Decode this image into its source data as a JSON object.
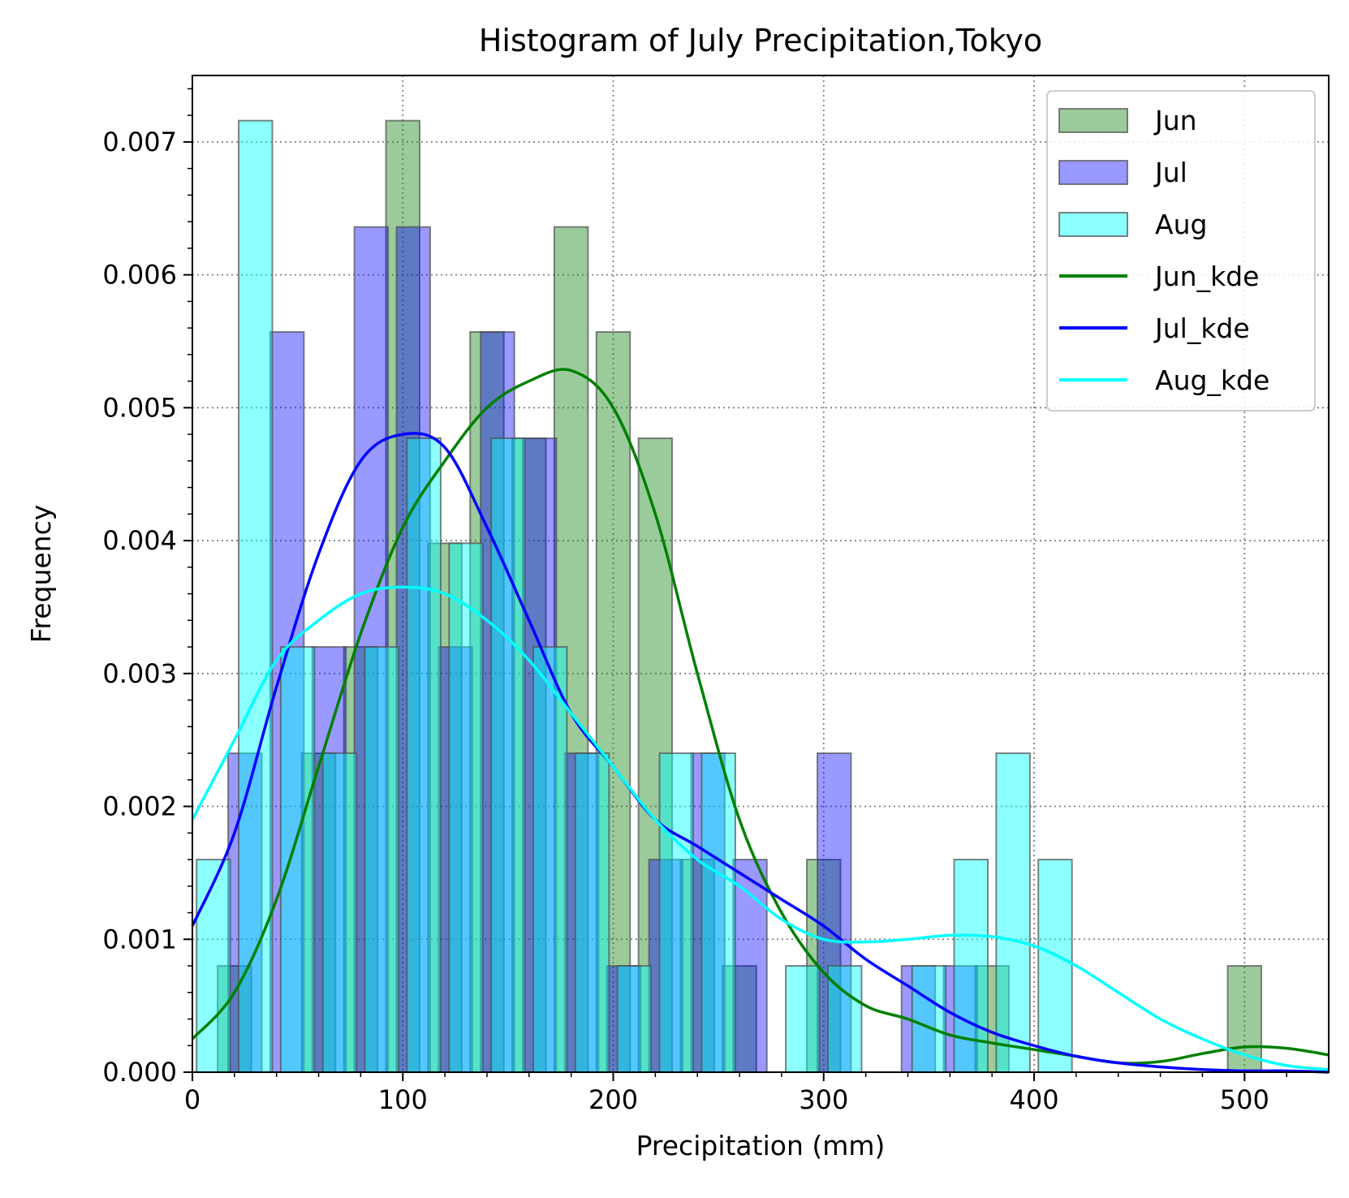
{
  "chart_data": {
    "type": "bar",
    "title": "Histogram of July Precipitation,Tokyo",
    "xlabel": "Precipitation (mm)",
    "ylabel": "Frequency",
    "xlim": [
      0,
      540
    ],
    "ylim": [
      0,
      0.0075
    ],
    "xticks": [
      "0",
      "100",
      "200",
      "300",
      "400",
      "500"
    ],
    "yticks": [
      "0.000",
      "0.001",
      "0.002",
      "0.003",
      "0.004",
      "0.005",
      "0.006",
      "0.007"
    ],
    "grid": true,
    "legend_position": "top-right",
    "bin_width": 20,
    "series": [
      {
        "name": "Jun",
        "kind": "hist",
        "color": "#228B22",
        "bins": [
          [
            20,
            0.0008
          ],
          [
            60,
            0.0024
          ],
          [
            80,
            0.0032
          ],
          [
            100,
            0.00716
          ],
          [
            120,
            0.00398
          ],
          [
            140,
            0.00557
          ],
          [
            160,
            0.00477
          ],
          [
            180,
            0.00636
          ],
          [
            200,
            0.00557
          ],
          [
            220,
            0.00477
          ],
          [
            240,
            0.0016
          ],
          [
            260,
            0.0008
          ],
          [
            300,
            0.0016
          ],
          [
            380,
            0.0008
          ],
          [
            500,
            0.0008
          ]
        ]
      },
      {
        "name": "Jul",
        "kind": "hist",
        "color": "#0000ff",
        "bins": [
          [
            25,
            0.0024
          ],
          [
            45,
            0.00557
          ],
          [
            65,
            0.0032
          ],
          [
            85,
            0.00636
          ],
          [
            105,
            0.00636
          ],
          [
            125,
            0.0032
          ],
          [
            145,
            0.00557
          ],
          [
            165,
            0.00477
          ],
          [
            185,
            0.0024
          ],
          [
            205,
            0.0008
          ],
          [
            225,
            0.0016
          ],
          [
            245,
            0.0024
          ],
          [
            265,
            0.0016
          ],
          [
            305,
            0.0024
          ],
          [
            345,
            0.0008
          ],
          [
            365,
            0.0008
          ]
        ]
      },
      {
        "name": "Aug",
        "kind": "hist",
        "color": "#00ffff",
        "bins": [
          [
            10,
            0.0016
          ],
          [
            30,
            0.00716
          ],
          [
            50,
            0.0032
          ],
          [
            70,
            0.0024
          ],
          [
            90,
            0.0032
          ],
          [
            110,
            0.00477
          ],
          [
            130,
            0.00398
          ],
          [
            150,
            0.00477
          ],
          [
            170,
            0.0032
          ],
          [
            190,
            0.0024
          ],
          [
            210,
            0.0008
          ],
          [
            230,
            0.0024
          ],
          [
            250,
            0.0024
          ],
          [
            290,
            0.0008
          ],
          [
            310,
            0.0008
          ],
          [
            350,
            0.0008
          ],
          [
            370,
            0.0016
          ],
          [
            390,
            0.0024
          ],
          [
            410,
            0.0016
          ]
        ]
      },
      {
        "name": "Jun_kde",
        "kind": "line",
        "color": "#008000",
        "x": [
          0,
          20,
          40,
          60,
          80,
          100,
          120,
          140,
          160,
          180,
          200,
          220,
          240,
          260,
          280,
          300,
          320,
          340,
          360,
          380,
          400,
          420,
          440,
          460,
          480,
          500,
          520,
          540
        ],
        "y": [
          0.00025,
          0.0006,
          0.0013,
          0.0023,
          0.0033,
          0.0041,
          0.0046,
          0.005,
          0.0052,
          0.00528,
          0.005,
          0.0042,
          0.003,
          0.0019,
          0.0012,
          0.00075,
          0.0005,
          0.0004,
          0.00028,
          0.00022,
          0.00017,
          0.00012,
          7e-05,
          8e-05,
          0.00014,
          0.00019,
          0.00018,
          0.00013
        ]
      },
      {
        "name": "Jul_kde",
        "kind": "line",
        "color": "#0000ff",
        "x": [
          0,
          20,
          40,
          60,
          80,
          100,
          120,
          140,
          160,
          180,
          200,
          220,
          240,
          260,
          280,
          300,
          320,
          340,
          360,
          380,
          400,
          420,
          440,
          460,
          480,
          500,
          520,
          540
        ],
        "y": [
          0.0011,
          0.0018,
          0.0029,
          0.0039,
          0.0046,
          0.0048,
          0.0047,
          0.0041,
          0.0034,
          0.0027,
          0.0023,
          0.0019,
          0.0017,
          0.0015,
          0.0013,
          0.0011,
          0.00085,
          0.00065,
          0.00045,
          0.0003,
          0.0002,
          0.00012,
          7e-05,
          4e-05,
          2e-05,
          1e-05,
          1e-05,
          0.0
        ]
      },
      {
        "name": "Aug_kde",
        "kind": "line",
        "color": "#00ffff",
        "x": [
          0,
          20,
          40,
          60,
          80,
          100,
          120,
          140,
          160,
          180,
          200,
          220,
          240,
          260,
          280,
          300,
          320,
          340,
          360,
          380,
          400,
          420,
          440,
          460,
          480,
          500,
          520,
          540
        ],
        "y": [
          0.0019,
          0.0025,
          0.0031,
          0.0034,
          0.0036,
          0.00365,
          0.0036,
          0.0034,
          0.0031,
          0.0027,
          0.0023,
          0.0019,
          0.0016,
          0.0014,
          0.00115,
          0.001,
          0.00098,
          0.001,
          0.00103,
          0.00102,
          0.00095,
          0.0008,
          0.0006,
          0.0004,
          0.00025,
          0.00013,
          5e-05,
          2e-05
        ]
      }
    ]
  }
}
